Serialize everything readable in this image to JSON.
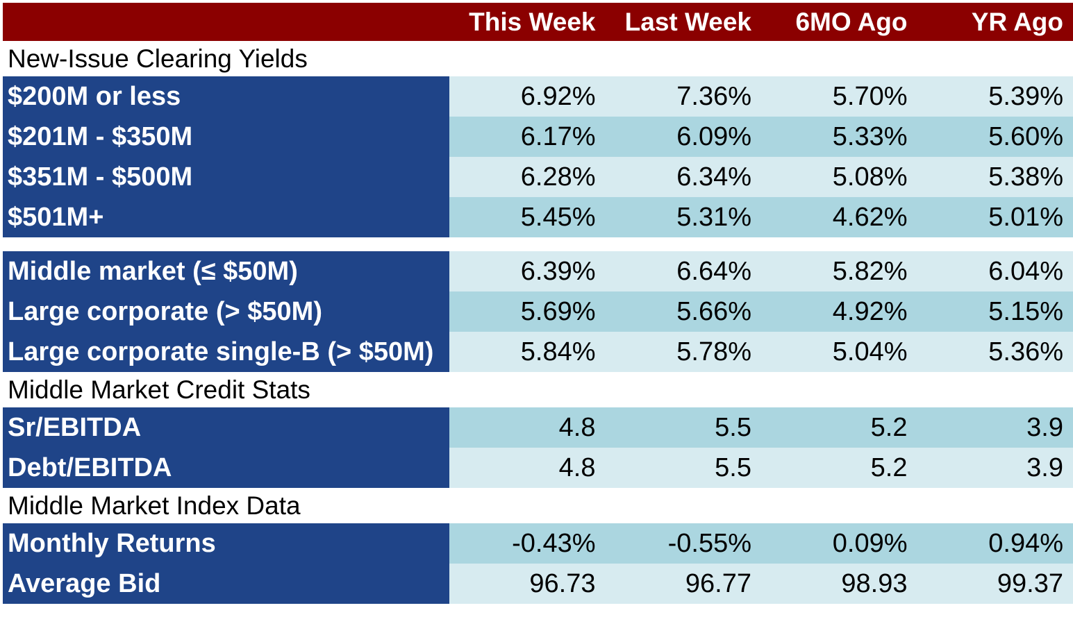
{
  "chart_data": {
    "type": "table",
    "columns": [
      "This Week",
      "Last Week",
      "6MO Ago",
      "YR Ago"
    ],
    "sections": [
      {
        "title": "New-Issue Clearing Yields",
        "rows": [
          {
            "label": "$200M or less",
            "values": [
              "6.92%",
              "7.36%",
              "5.70%",
              "5.39%"
            ]
          },
          {
            "label": "$201M - $350M",
            "values": [
              "6.17%",
              "6.09%",
              "5.33%",
              "5.60%"
            ]
          },
          {
            "label": "$351M - $500M",
            "values": [
              "6.28%",
              "6.34%",
              "5.08%",
              "5.38%"
            ]
          },
          {
            "label": "$501M+",
            "values": [
              "5.45%",
              "5.31%",
              "4.62%",
              "5.01%"
            ]
          }
        ]
      },
      {
        "title": "",
        "rows": [
          {
            "label": "Middle market (≤ $50M)",
            "values": [
              "6.39%",
              "6.64%",
              "5.82%",
              "6.04%"
            ]
          },
          {
            "label": "Large corporate (> $50M)",
            "values": [
              "5.69%",
              "5.66%",
              "4.92%",
              "5.15%"
            ]
          },
          {
            "label": "Large corporate single-B (> $50M)",
            "values": [
              "5.84%",
              "5.78%",
              "5.04%",
              "5.36%"
            ]
          }
        ]
      },
      {
        "title": "Middle Market Credit Stats",
        "rows": [
          {
            "label": "Sr/EBITDA",
            "values": [
              "4.8",
              "5.5",
              "5.2",
              "3.9"
            ]
          },
          {
            "label": "Debt/EBITDA",
            "values": [
              "4.8",
              "5.5",
              "5.2",
              "3.9"
            ]
          }
        ]
      },
      {
        "title": "Middle Market Index Data",
        "rows": [
          {
            "label": "Monthly Returns",
            "values": [
              "-0.43%",
              "-0.55%",
              "0.09%",
              "0.94%"
            ]
          },
          {
            "label": "Average Bid",
            "values": [
              "96.73",
              "96.77",
              "98.93",
              "99.37"
            ]
          }
        ]
      }
    ],
    "colors": {
      "header_bg": "#8b0000",
      "label_bg": "#1f4488",
      "cell_light": "#d7ebf0",
      "cell_dark": "#abd6e0"
    }
  }
}
